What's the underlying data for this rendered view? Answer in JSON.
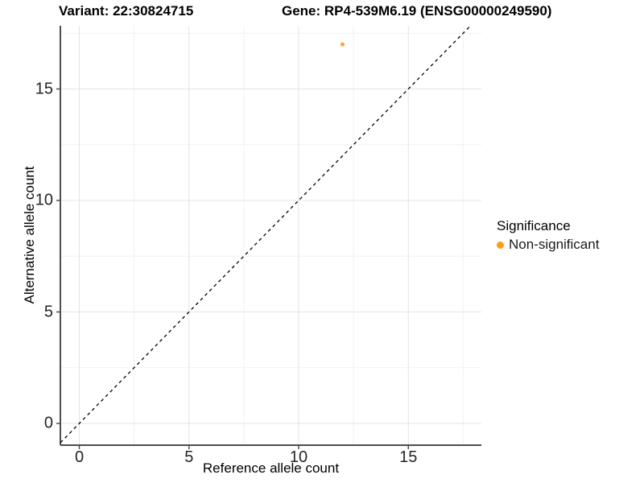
{
  "chart_data": {
    "type": "scatter",
    "title_left": "Variant: 22:30824715",
    "title_right": "Gene: RP4-539M6.19 (ENSG00000249590)",
    "xlabel": "Reference allele count",
    "ylabel": "Alternative allele count",
    "x_ticks": [
      0,
      5,
      10,
      15
    ],
    "y_ticks": [
      0,
      5,
      10,
      15
    ],
    "x_minor_ticks": [
      2.5,
      7.5,
      12.5,
      17.5
    ],
    "y_minor_ticks": [
      2.5,
      7.5,
      12.5,
      17.5
    ],
    "xlim": [
      -0.86,
      18.33
    ],
    "ylim": [
      -0.97,
      17.83
    ],
    "grid": "on",
    "points": [
      {
        "x": 12,
        "y": 17,
        "series": "Non-significant"
      }
    ],
    "identity_line": {
      "style": "dashed",
      "equation": "y = x",
      "color": "#000000"
    },
    "legend": {
      "title": "Significance",
      "position": "right",
      "items": [
        {
          "label": "Non-significant",
          "color": "#FF9E10"
        }
      ]
    },
    "colors": {
      "point": "#F9A032",
      "axis_line": "#4d4d4d",
      "grid_major": "#e4e4e4",
      "grid_minor": "#f1f1f1",
      "tick_text": "#262626"
    }
  }
}
